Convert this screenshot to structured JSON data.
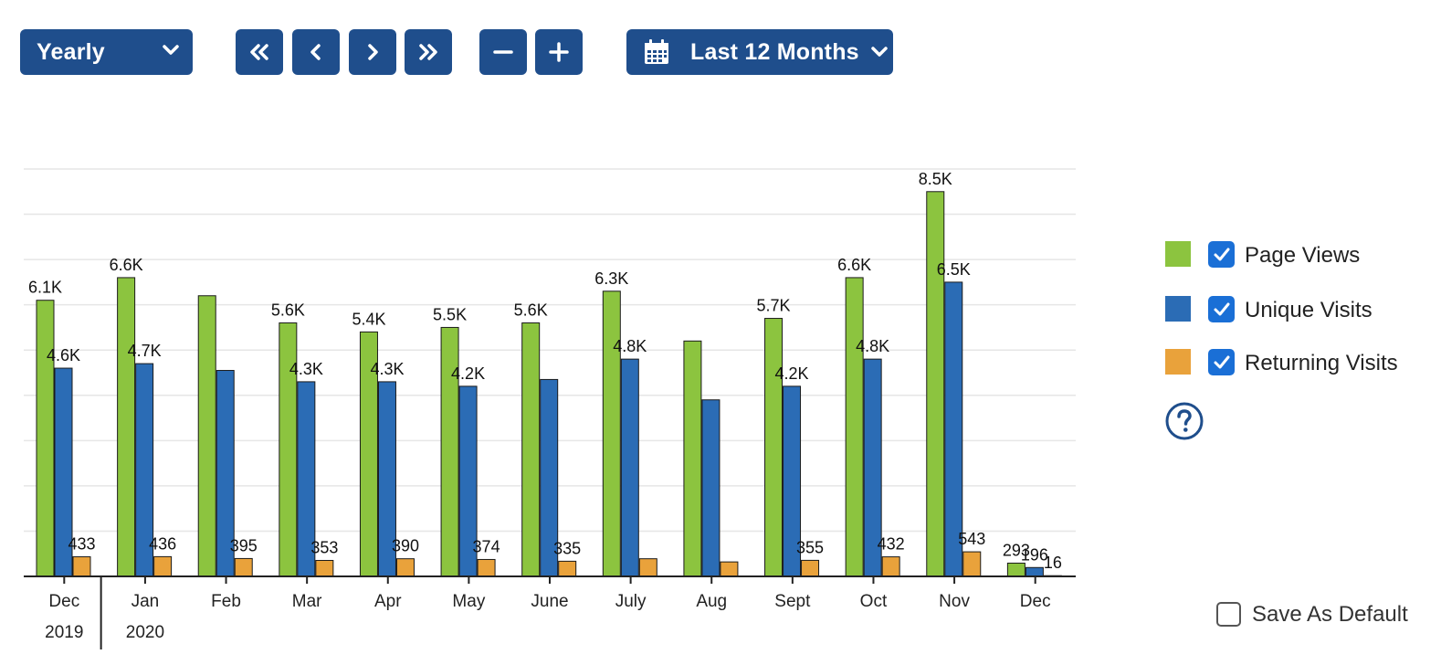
{
  "toolbar": {
    "period": "Yearly",
    "range": "Last 12 Months"
  },
  "legend": {
    "items": [
      {
        "label": "Page Views",
        "color": "#8cc43f",
        "checked": true
      },
      {
        "label": "Unique Visits",
        "color": "#2b6cb5",
        "checked": true
      },
      {
        "label": "Returning Visits",
        "color": "#e9a23b",
        "checked": true
      }
    ]
  },
  "save_default_label": "Save As Default",
  "colors": {
    "accent": "#1f4e8c",
    "checkbox": "#1a6fd6",
    "page_views": "#8cc43f",
    "unique_visits": "#2b6cb5",
    "returning_visits": "#e9a23b"
  },
  "chart_data": {
    "type": "bar",
    "categories": [
      "Dec",
      "Jan",
      "Feb",
      "Mar",
      "Apr",
      "May",
      "June",
      "July",
      "Aug",
      "Sept",
      "Oct",
      "Nov",
      "Dec"
    ],
    "year_labels": [
      {
        "label": "2019",
        "category_index": 0
      },
      {
        "label": "2020",
        "category_index": 1
      }
    ],
    "ylim": [
      0,
      9000
    ],
    "grid": true,
    "legend_position": "right",
    "series": [
      {
        "name": "Page Views",
        "values": [
          6100,
          6600,
          6200,
          5600,
          5400,
          5500,
          5600,
          6300,
          5200,
          5700,
          6600,
          8500,
          293
        ],
        "labels": [
          "6.1K",
          "6.6K",
          "",
          "5.6K",
          "5.4K",
          "5.5K",
          "5.6K",
          "6.3K",
          "",
          "5.7K",
          "6.6K",
          "8.5K",
          "293"
        ]
      },
      {
        "name": "Unique Visits",
        "values": [
          4600,
          4700,
          4550,
          4300,
          4300,
          4200,
          4350,
          4800,
          3900,
          4200,
          4800,
          6500,
          196
        ],
        "labels": [
          "4.6K",
          "4.7K",
          "",
          "4.3K",
          "4.3K",
          "4.2K",
          "",
          "4.8K",
          "",
          "4.2K",
          "4.8K",
          "6.5K",
          "196"
        ]
      },
      {
        "name": "Returning Visits",
        "values": [
          433,
          436,
          395,
          353,
          390,
          374,
          335,
          390,
          320,
          355,
          432,
          543,
          16
        ],
        "labels": [
          "433",
          "436",
          "395",
          "353",
          "390",
          "374",
          "335",
          "",
          "",
          "355",
          "432",
          "543",
          "16"
        ]
      }
    ]
  }
}
